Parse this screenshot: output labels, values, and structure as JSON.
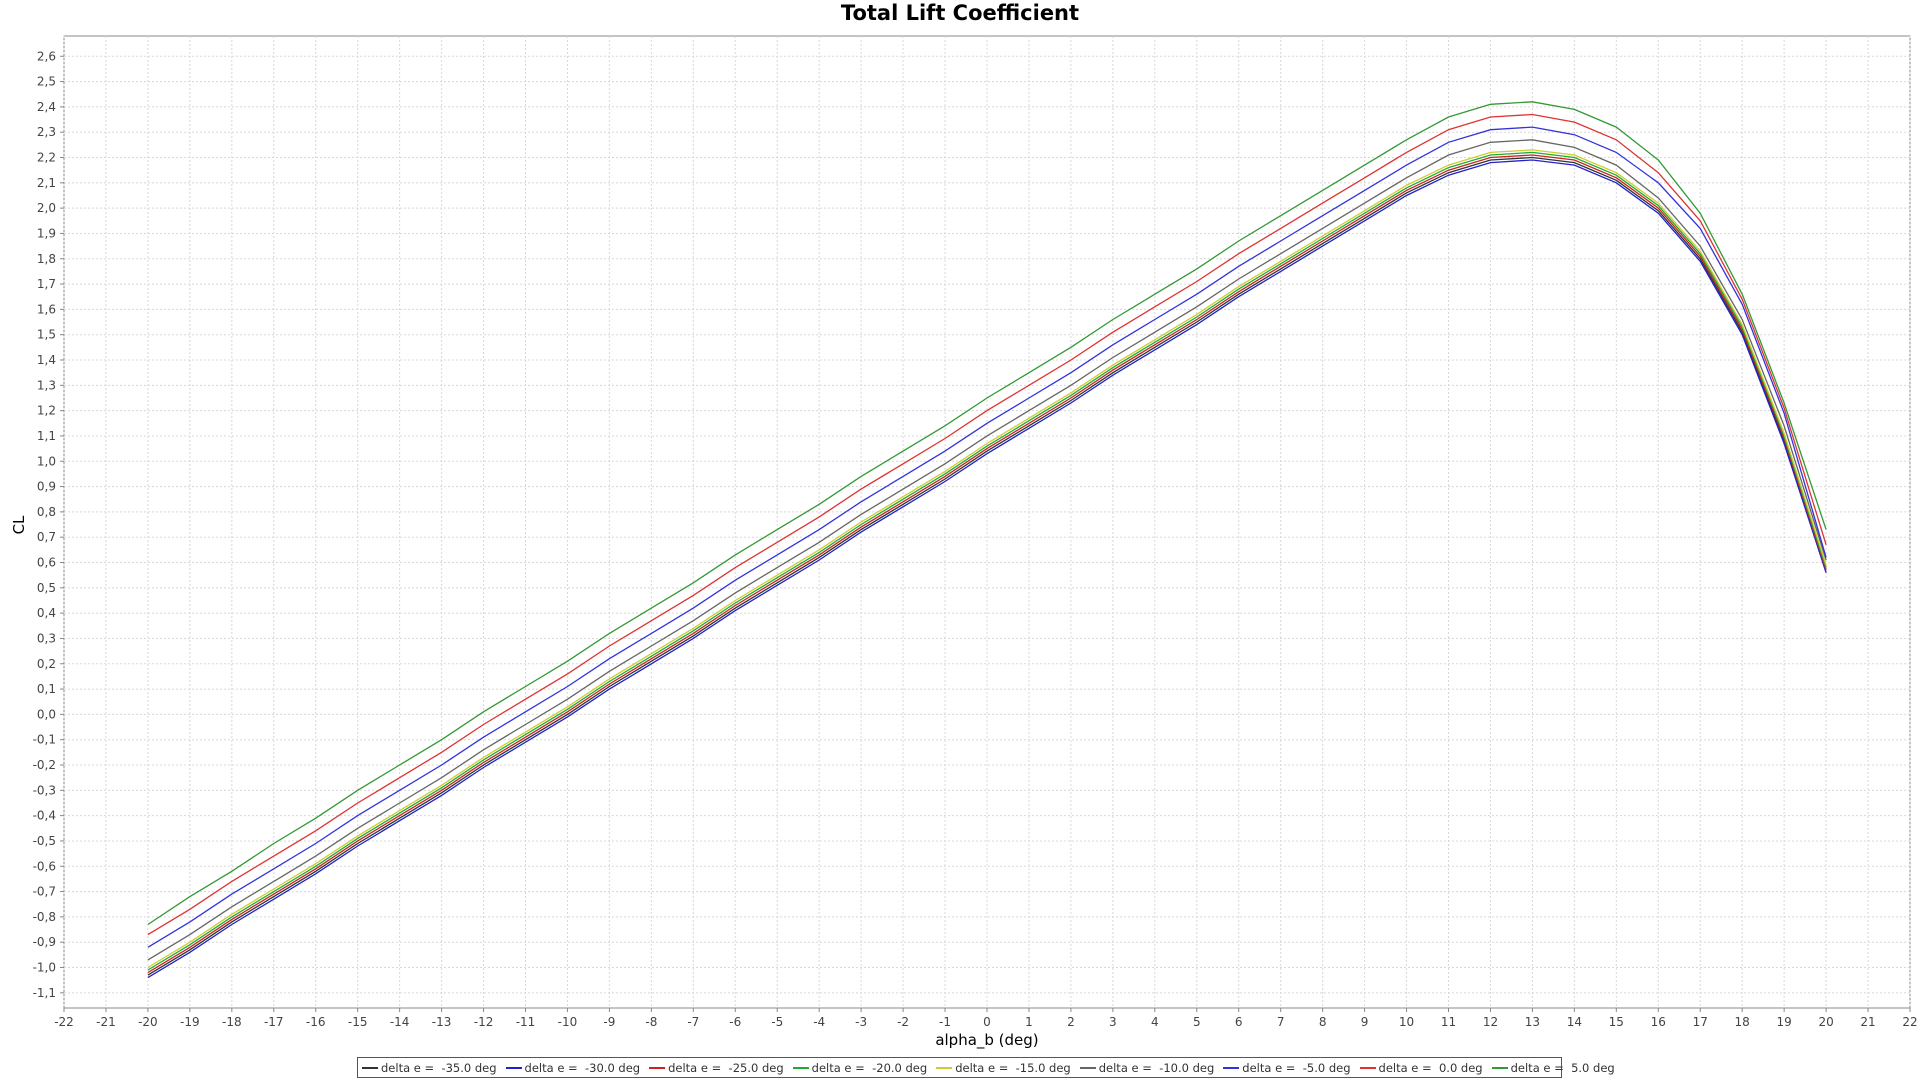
{
  "chart_data": {
    "type": "line",
    "title": "Total Lift Coefficient",
    "xlabel": "alpha_b (deg)",
    "ylabel": "CL",
    "xlim": [
      -22,
      22
    ],
    "ylim": [
      -1.1,
      2.6
    ],
    "xticks": [
      "-22",
      "-21",
      "-20",
      "-19",
      "-18",
      "-17",
      "-16",
      "-15",
      "-14",
      "-13",
      "-12",
      "-11",
      "-10",
      "-9",
      "-8",
      "-7",
      "-6",
      "-5",
      "-4",
      "-3",
      "-2",
      "-1",
      "0",
      "1",
      "2",
      "3",
      "4",
      "5",
      "6",
      "7",
      "8",
      "9",
      "10",
      "11",
      "12",
      "13",
      "14",
      "15",
      "16",
      "17",
      "18",
      "19",
      "20",
      "21",
      "22"
    ],
    "yticks": [
      "-1,1",
      "-1,0",
      "-0,9",
      "-0,8",
      "-0,7",
      "-0,6",
      "-0,5",
      "-0,4",
      "-0,3",
      "-0,2",
      "-0,1",
      "0,0",
      "0,1",
      "0,2",
      "0,3",
      "0,4",
      "0,5",
      "0,6",
      "0,7",
      "0,8",
      "0,9",
      "1,0",
      "1,1",
      "1,2",
      "1,3",
      "1,4",
      "1,5",
      "1,6",
      "1,7",
      "1,8",
      "1,9",
      "2,0",
      "2,1",
      "2,2",
      "2,3",
      "2,4",
      "2,5",
      "2,6"
    ],
    "grid": true,
    "legend_position": "bottom",
    "x": [
      -20,
      -19,
      -18,
      -17,
      -16,
      -15,
      -14,
      -13,
      -12,
      -11,
      -10,
      -9,
      -8,
      -7,
      -6,
      -5,
      -4,
      -3,
      -2,
      -1,
      0,
      1,
      2,
      3,
      4,
      5,
      6,
      7,
      8,
      9,
      10,
      11,
      12,
      13,
      14,
      15,
      16,
      17,
      18,
      19,
      20
    ],
    "series": [
      {
        "name": "delta e =  -35.0 deg",
        "color": "#333333",
        "values": [
          -1.03,
          -0.93,
          -0.82,
          -0.72,
          -0.62,
          -0.51,
          -0.41,
          -0.31,
          -0.2,
          -0.1,
          0.0,
          0.11,
          0.21,
          0.31,
          0.42,
          0.52,
          0.62,
          0.73,
          0.83,
          0.93,
          1.04,
          1.14,
          1.24,
          1.35,
          1.45,
          1.55,
          1.66,
          1.76,
          1.86,
          1.96,
          2.06,
          2.14,
          2.19,
          2.2,
          2.18,
          2.11,
          1.99,
          1.8,
          1.51,
          1.08,
          0.56
        ]
      },
      {
        "name": "delta e =  -30.0 deg",
        "color": "#2222cc",
        "values": [
          -1.04,
          -0.94,
          -0.83,
          -0.73,
          -0.63,
          -0.52,
          -0.42,
          -0.32,
          -0.21,
          -0.11,
          -0.01,
          0.1,
          0.2,
          0.3,
          0.41,
          0.51,
          0.61,
          0.72,
          0.82,
          0.92,
          1.03,
          1.13,
          1.23,
          1.34,
          1.44,
          1.54,
          1.65,
          1.75,
          1.85,
          1.95,
          2.05,
          2.13,
          2.18,
          2.19,
          2.17,
          2.1,
          1.98,
          1.79,
          1.5,
          1.07,
          0.56
        ]
      },
      {
        "name": "delta e =  -25.0 deg",
        "color": "#cc2222",
        "values": [
          -1.02,
          -0.92,
          -0.81,
          -0.71,
          -0.61,
          -0.5,
          -0.4,
          -0.3,
          -0.19,
          -0.09,
          0.01,
          0.12,
          0.22,
          0.32,
          0.43,
          0.53,
          0.63,
          0.74,
          0.84,
          0.94,
          1.05,
          1.15,
          1.25,
          1.36,
          1.46,
          1.56,
          1.67,
          1.77,
          1.87,
          1.97,
          2.07,
          2.15,
          2.2,
          2.21,
          2.19,
          2.12,
          2.0,
          1.81,
          1.52,
          1.09,
          0.57
        ]
      },
      {
        "name": "delta e =  -20.0 deg",
        "color": "#22aa33",
        "values": [
          -1.01,
          -0.91,
          -0.8,
          -0.7,
          -0.6,
          -0.49,
          -0.39,
          -0.29,
          -0.18,
          -0.08,
          0.02,
          0.13,
          0.23,
          0.33,
          0.44,
          0.54,
          0.64,
          0.75,
          0.85,
          0.95,
          1.06,
          1.16,
          1.26,
          1.37,
          1.47,
          1.57,
          1.68,
          1.78,
          1.88,
          1.98,
          2.08,
          2.16,
          2.21,
          2.22,
          2.2,
          2.13,
          2.01,
          1.82,
          1.53,
          1.1,
          0.58
        ]
      },
      {
        "name": "delta e =  -15.0 deg",
        "color": "#cccc33",
        "values": [
          -1.0,
          -0.9,
          -0.79,
          -0.69,
          -0.59,
          -0.48,
          -0.38,
          -0.28,
          -0.17,
          -0.07,
          0.03,
          0.14,
          0.24,
          0.34,
          0.45,
          0.55,
          0.65,
          0.76,
          0.86,
          0.96,
          1.07,
          1.17,
          1.27,
          1.38,
          1.48,
          1.58,
          1.69,
          1.79,
          1.89,
          1.99,
          2.09,
          2.17,
          2.22,
          2.23,
          2.21,
          2.14,
          2.02,
          1.83,
          1.54,
          1.11,
          0.59
        ]
      },
      {
        "name": "delta e =  -10.0 deg",
        "color": "#666666",
        "values": [
          -0.97,
          -0.87,
          -0.76,
          -0.66,
          -0.56,
          -0.45,
          -0.35,
          -0.25,
          -0.14,
          -0.04,
          0.06,
          0.17,
          0.27,
          0.37,
          0.48,
          0.58,
          0.68,
          0.79,
          0.89,
          0.99,
          1.1,
          1.2,
          1.3,
          1.41,
          1.51,
          1.61,
          1.72,
          1.82,
          1.92,
          2.02,
          2.12,
          2.21,
          2.26,
          2.27,
          2.24,
          2.17,
          2.04,
          1.85,
          1.56,
          1.14,
          0.61
        ]
      },
      {
        "name": "delta e =  -5.0 deg",
        "color": "#3333dd",
        "values": [
          -0.92,
          -0.82,
          -0.71,
          -0.61,
          -0.51,
          -0.4,
          -0.3,
          -0.2,
          -0.09,
          0.01,
          0.11,
          0.22,
          0.32,
          0.42,
          0.53,
          0.63,
          0.73,
          0.84,
          0.94,
          1.04,
          1.15,
          1.25,
          1.35,
          1.46,
          1.56,
          1.66,
          1.77,
          1.87,
          1.97,
          2.07,
          2.17,
          2.26,
          2.31,
          2.32,
          2.29,
          2.22,
          2.1,
          1.92,
          1.62,
          1.19,
          0.62
        ]
      },
      {
        "name": "delta e =  0.0 deg",
        "color": "#dd3333",
        "values": [
          -0.87,
          -0.77,
          -0.66,
          -0.56,
          -0.46,
          -0.35,
          -0.25,
          -0.15,
          -0.04,
          0.06,
          0.16,
          0.27,
          0.37,
          0.47,
          0.58,
          0.68,
          0.78,
          0.89,
          0.99,
          1.09,
          1.2,
          1.3,
          1.4,
          1.51,
          1.61,
          1.71,
          1.82,
          1.92,
          2.02,
          2.12,
          2.22,
          2.31,
          2.36,
          2.37,
          2.34,
          2.27,
          2.14,
          1.95,
          1.64,
          1.21,
          0.67
        ]
      },
      {
        "name": "delta e =  5.0 deg",
        "color": "#339933",
        "values": [
          -0.83,
          -0.72,
          -0.62,
          -0.51,
          -0.41,
          -0.3,
          -0.2,
          -0.1,
          0.01,
          0.11,
          0.21,
          0.32,
          0.42,
          0.52,
          0.63,
          0.73,
          0.83,
          0.94,
          1.04,
          1.14,
          1.25,
          1.35,
          1.45,
          1.56,
          1.66,
          1.76,
          1.87,
          1.97,
          2.07,
          2.17,
          2.27,
          2.36,
          2.41,
          2.42,
          2.39,
          2.32,
          2.19,
          1.98,
          1.66,
          1.23,
          0.73
        ]
      }
    ]
  }
}
